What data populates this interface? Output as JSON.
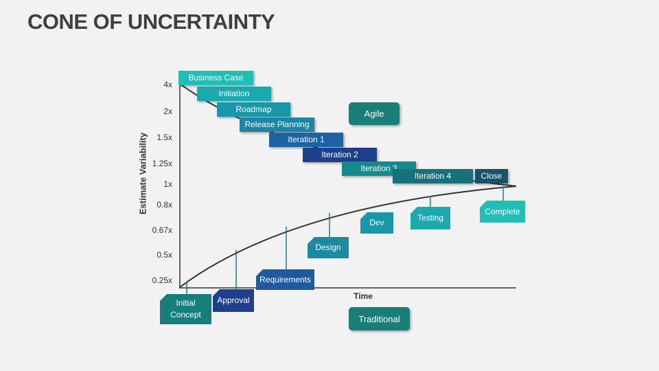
{
  "header": {
    "title": "CONE OF UNCERTAINTY"
  },
  "axes": {
    "y_label": "Estimate Variability",
    "x_label": "Time",
    "y_ticks": [
      "4x",
      "2x",
      "1.5x",
      "1.25x",
      "1x",
      "0.8x",
      "0.67x",
      "0.5x",
      "0.25x"
    ]
  },
  "agile": {
    "button": "Agile",
    "stages": [
      "Business Case",
      "Initiation",
      "Roadmap",
      "Release Planning",
      "Iteration 1",
      "Iteration 2",
      "Iteration 3",
      "Iteration 4",
      "Close"
    ]
  },
  "traditional": {
    "button": "Traditional",
    "stages": [
      "Initial Concept",
      "Approval",
      "Requirements",
      "Design",
      "Dev",
      "Testing",
      "Complete"
    ]
  }
}
